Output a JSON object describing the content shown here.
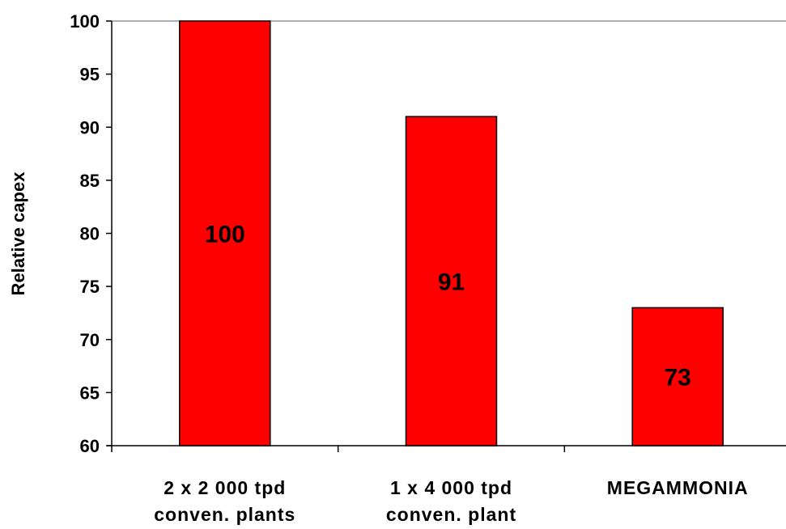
{
  "chart_data": {
    "type": "bar",
    "categories": [
      [
        "2 x 2 000 tpd",
        "conven. plants"
      ],
      [
        "1 x 4 000 tpd",
        "conven. plant"
      ],
      [
        "MEGAMMONIA"
      ]
    ],
    "values": [
      100,
      91,
      73
    ],
    "data_labels": [
      "100",
      "91",
      "73"
    ],
    "ylabel": "Relative capex",
    "xlabel": "",
    "title": "",
    "ylim": [
      60,
      100
    ],
    "yticks": [
      60,
      65,
      70,
      75,
      80,
      85,
      90,
      95,
      100
    ],
    "grid": false,
    "legend": "none"
  },
  "colors": {
    "bar_fill": "#ff0000",
    "bar_stroke": "#000000",
    "axis": "#000000"
  }
}
